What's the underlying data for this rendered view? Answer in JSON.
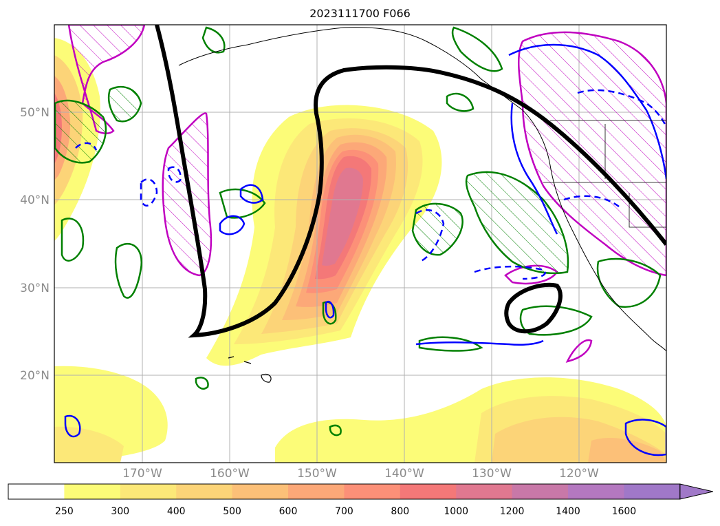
{
  "title": "2023111700 F066",
  "map": {
    "lat_labels": [
      "50°N",
      "40°N",
      "30°N",
      "20°N"
    ],
    "lon_labels": [
      "170°W",
      "160°W",
      "150°W",
      "140°W",
      "130°W",
      "120°W"
    ],
    "lat_range": [
      10,
      60
    ],
    "lon_range": [
      -180,
      -110
    ],
    "grid": true
  },
  "colorbar": {
    "levels": [
      "250",
      "300",
      "400",
      "500",
      "600",
      "700",
      "800",
      "1000",
      "1200",
      "1400",
      "1600"
    ],
    "colors": [
      "#ffffff",
      "#fcfc78",
      "#fce878",
      "#fcd478",
      "#fcc078",
      "#fca878",
      "#fc9078",
      "#f47878",
      "#e07890",
      "#c878a8",
      "#b478c0",
      "#a078c8"
    ],
    "extend": "max"
  },
  "legend_colors": {
    "black_contour": "#000000",
    "green_contour": "#008000",
    "blue_contour": "#0000ff",
    "magenta_contour": "#c000c0"
  }
}
